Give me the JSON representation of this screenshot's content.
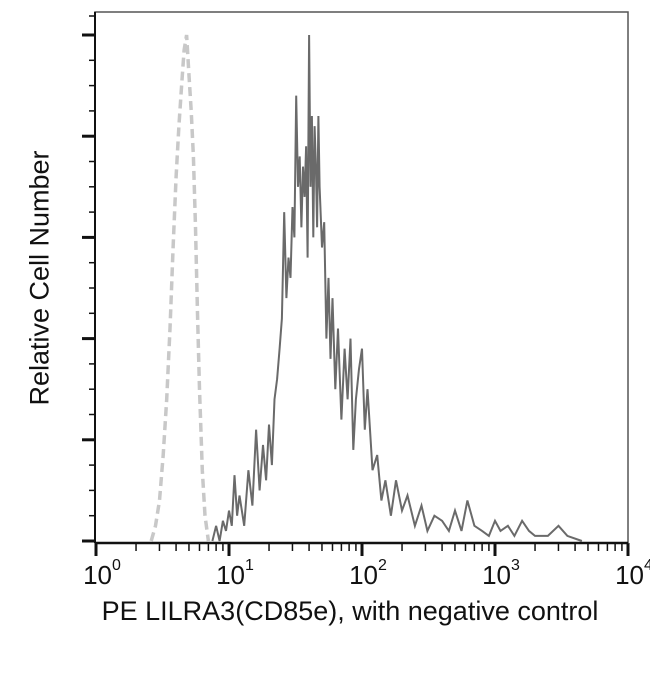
{
  "chart_data": {
    "type": "line",
    "title": "",
    "xlabel": "PE LILRA3(CD85e), with negative control",
    "ylabel": "Relative Cell Number",
    "xscale": "log",
    "xlim": [
      1,
      10000
    ],
    "x_ticks": [
      {
        "base": "10",
        "exp": "0",
        "value": 1
      },
      {
        "base": "10",
        "exp": "1",
        "value": 10
      },
      {
        "base": "10",
        "exp": "2",
        "value": 100
      },
      {
        "base": "10",
        "exp": "3",
        "value": 1000
      },
      {
        "base": "10",
        "exp": "4",
        "value": 10000
      }
    ],
    "ylim": [
      0,
      100
    ],
    "y_major_ticks": [
      0,
      20,
      40,
      60,
      80,
      100
    ],
    "grid": false,
    "legend": null,
    "series": [
      {
        "name": "Negative control",
        "style": "dashed",
        "color": "#c8c8c8",
        "x": [
          2.6,
          2.8,
          3.0,
          3.2,
          3.4,
          3.6,
          3.8,
          4.0,
          4.2,
          4.4,
          4.6,
          4.8,
          5.0,
          5.2,
          5.4,
          5.6,
          5.8,
          6.0,
          6.3,
          6.6,
          7.0
        ],
        "values": [
          0,
          3,
          8,
          17,
          28,
          42,
          58,
          72,
          82,
          90,
          97,
          100,
          92,
          85,
          76,
          62,
          45,
          30,
          14,
          5,
          0
        ]
      },
      {
        "name": "PE LILRA3(CD85e)",
        "style": "solid",
        "color": "#6a6a6a",
        "x": [
          7.5,
          8,
          8.5,
          9,
          9.5,
          10,
          10.5,
          11,
          11.5,
          12,
          13,
          14,
          15,
          16,
          17,
          18,
          19,
          20,
          21,
          22,
          23,
          24,
          25,
          26,
          27,
          28,
          29,
          30,
          31,
          32,
          33,
          34,
          35,
          36,
          37,
          38,
          39,
          40,
          41,
          42,
          43,
          44,
          45,
          46,
          47,
          48,
          50,
          52,
          54,
          56,
          58,
          60,
          63,
          66,
          70,
          74,
          78,
          82,
          86,
          90,
          95,
          100,
          105,
          110,
          120,
          130,
          140,
          150,
          165,
          180,
          200,
          220,
          250,
          280,
          310,
          350,
          400,
          450,
          500,
          560,
          620,
          700,
          800,
          900,
          1000,
          1100,
          1250,
          1400,
          1600,
          1800,
          2000,
          2500,
          3000,
          3500,
          4500
        ],
        "values": [
          0,
          3,
          0,
          4,
          2,
          6,
          3,
          13,
          5,
          9,
          3,
          14,
          7,
          22,
          10,
          19,
          12,
          23,
          15,
          28,
          32,
          38,
          44,
          65,
          48,
          56,
          52,
          66,
          60,
          88,
          70,
          76,
          62,
          74,
          68,
          78,
          56,
          100,
          70,
          84,
          60,
          82,
          74,
          62,
          84,
          70,
          58,
          63,
          40,
          52,
          36,
          48,
          30,
          42,
          24,
          38,
          28,
          40,
          18,
          28,
          34,
          38,
          22,
          30,
          14,
          17,
          8,
          12,
          5,
          12,
          6,
          9,
          3,
          7,
          2,
          5,
          4,
          2,
          6,
          2,
          8,
          3,
          2,
          1,
          4,
          2,
          3,
          1,
          4,
          2,
          1,
          1,
          3,
          1,
          0
        ]
      }
    ]
  }
}
